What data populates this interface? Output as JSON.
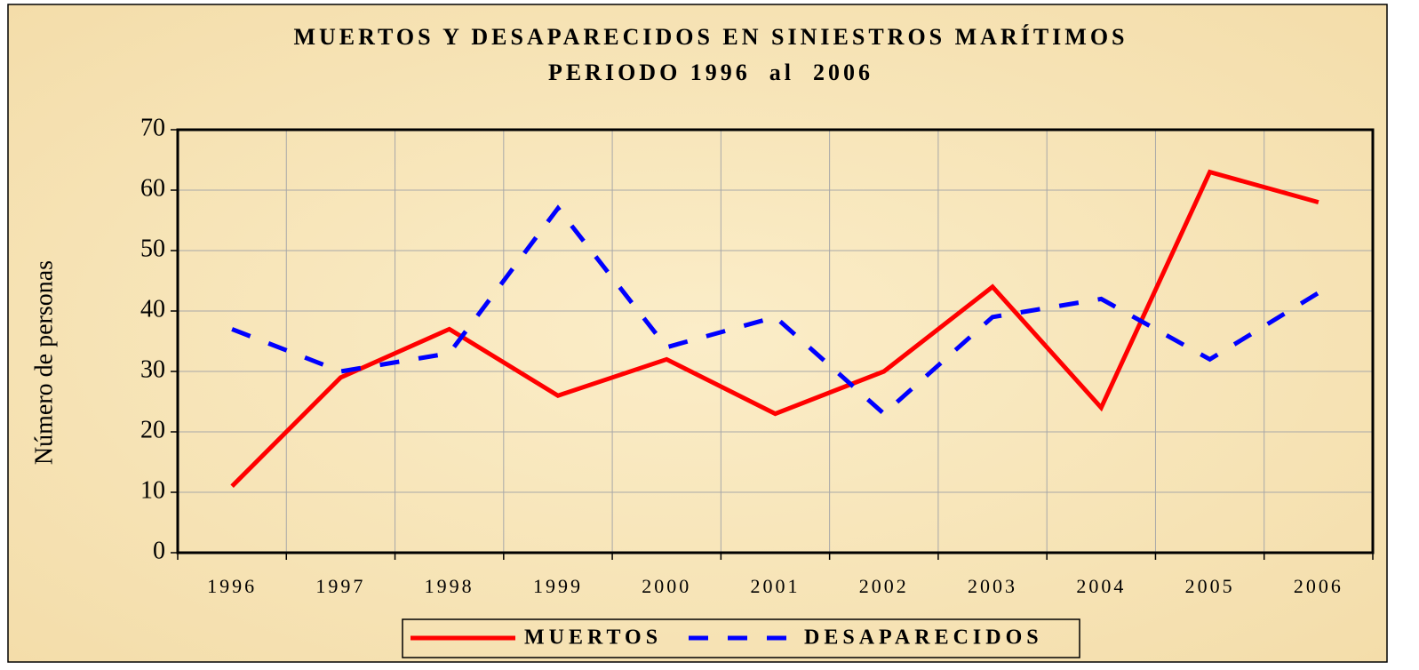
{
  "chart_data": {
    "type": "line",
    "title": "MUERTOS Y DESAPARECIDOS EN SINIESTROS MARÍTIMOS",
    "subtitle": "PERIODO 1996  al  2006",
    "y_label": "Número de personas",
    "categories": [
      "1996",
      "1997",
      "1998",
      "1999",
      "2000",
      "2001",
      "2002",
      "2003",
      "2004",
      "2005",
      "2006"
    ],
    "series": [
      {
        "name": "MUERTOS",
        "color": "#ff0000",
        "dashed": false,
        "values": [
          11,
          29,
          37,
          26,
          32,
          23,
          30,
          44,
          24,
          63,
          58
        ]
      },
      {
        "name": "DESAPARECIDOS",
        "color": "#0000ff",
        "dashed": true,
        "values": [
          37,
          30,
          33,
          57,
          34,
          39,
          23,
          39,
          42,
          32,
          43
        ]
      }
    ],
    "ylim": [
      0,
      70
    ],
    "yticks": [
      0,
      10,
      20,
      30,
      40,
      50,
      60,
      70
    ],
    "grid": true
  }
}
